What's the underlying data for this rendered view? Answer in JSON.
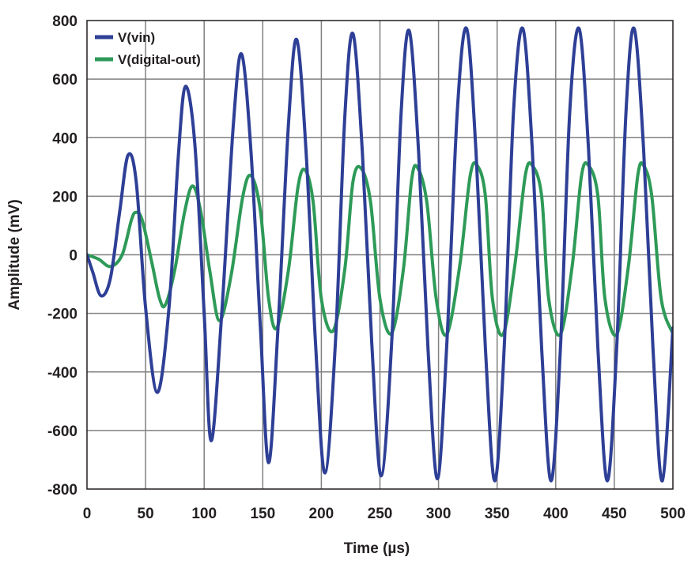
{
  "chart_data": {
    "type": "line",
    "title": "",
    "xlabel": "Time (µs)",
    "ylabel": "Amplitude (mV)",
    "xlim": [
      0,
      500
    ],
    "ylim": [
      -800,
      800
    ],
    "grid": true,
    "legend_position": "top-left",
    "x_ticks": [
      "0",
      "50",
      "100",
      "150",
      "200",
      "250",
      "300",
      "350",
      "400",
      "450",
      "500"
    ],
    "y_ticks": [
      "800",
      "600",
      "400",
      "200",
      "0",
      "-200",
      "-400",
      "-600",
      "-800"
    ],
    "series": [
      {
        "name": "V(vin)",
        "color": "#2e3f96",
        "x": [
          0,
          5,
          12,
          20,
          28,
          35,
          42,
          50,
          60,
          70,
          78,
          84,
          92,
          100,
          106,
          115,
          125,
          132,
          140,
          148,
          155,
          163,
          172,
          179,
          187,
          195,
          203,
          212,
          220,
          227,
          235,
          243,
          251,
          260,
          268,
          275,
          283,
          291,
          299,
          307,
          316,
          324,
          332,
          340,
          348,
          356,
          364,
          372,
          380,
          388,
          396,
          404,
          412,
          420,
          428,
          436,
          444,
          452,
          460,
          467,
          475,
          483,
          491,
          500
        ],
        "values": [
          0,
          -60,
          -140,
          -80,
          150,
          340,
          250,
          -180,
          -470,
          -180,
          340,
          575,
          380,
          -200,
          -635,
          -200,
          450,
          685,
          350,
          -250,
          -710,
          -250,
          450,
          735,
          350,
          -300,
          -745,
          -300,
          470,
          755,
          350,
          -300,
          -755,
          -300,
          480,
          765,
          350,
          -320,
          -765,
          -310,
          490,
          772,
          350,
          -320,
          -772,
          -320,
          490,
          772,
          360,
          -320,
          -772,
          -320,
          490,
          772,
          360,
          -320,
          -772,
          -320,
          490,
          772,
          360,
          -320,
          -772,
          -250
        ]
      },
      {
        "name": "V(digital-out)",
        "color": "#2e9a58",
        "x": [
          0,
          10,
          20,
          30,
          38,
          42,
          47,
          55,
          62,
          67,
          75,
          83,
          90,
          97,
          105,
          113,
          123,
          133,
          140,
          148,
          155,
          162,
          172,
          180,
          186,
          193,
          200,
          210,
          220,
          227,
          234,
          242,
          250,
          260,
          270,
          277,
          282,
          290,
          298,
          307,
          318,
          327,
          333,
          340,
          346,
          355,
          365,
          374,
          380,
          388,
          394,
          404,
          414,
          422,
          428,
          436,
          442,
          452,
          462,
          470,
          475,
          482,
          490,
          500
        ],
        "values": [
          0,
          -15,
          -40,
          0,
          120,
          145,
          120,
          -20,
          -150,
          -170,
          -50,
          140,
          235,
          150,
          -60,
          -225,
          -70,
          200,
          270,
          150,
          -150,
          -250,
          -50,
          230,
          290,
          180,
          -150,
          -260,
          -50,
          250,
          295,
          180,
          -150,
          -268,
          -50,
          255,
          298,
          180,
          -150,
          -272,
          -40,
          270,
          305,
          200,
          -150,
          -272,
          -40,
          270,
          305,
          200,
          -150,
          -272,
          -40,
          270,
          305,
          200,
          -150,
          -272,
          -40,
          270,
          305,
          200,
          -150,
          -270
        ]
      }
    ]
  }
}
